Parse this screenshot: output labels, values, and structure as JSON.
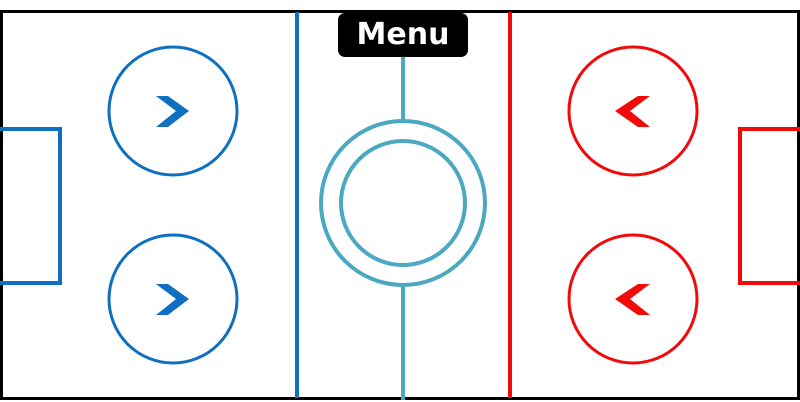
{
  "menu": {
    "label": "Menu"
  },
  "colors": {
    "background": "#ffffff",
    "border": "#000000",
    "blue_team": "#0f6fc0",
    "red_team": "#f00a0a",
    "center": "#4aa8c0",
    "menu_bg": "#000000",
    "menu_text": "#ffffff"
  },
  "icons": {
    "left_buttons": "chevron-right-icon",
    "right_buttons": "chevron-left-icon"
  }
}
